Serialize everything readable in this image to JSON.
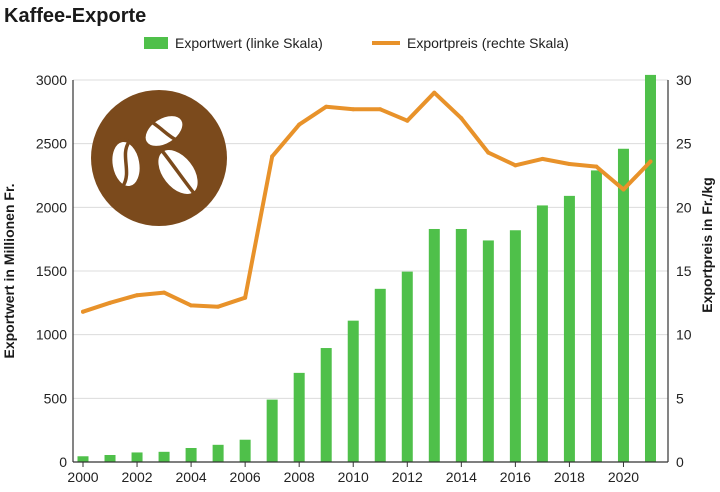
{
  "chart_data": {
    "type": "bar",
    "title": "Kaffee-Exporte",
    "legend_placement": "top",
    "grid": true,
    "x": [
      2000,
      2001,
      2002,
      2003,
      2004,
      2005,
      2006,
      2007,
      2008,
      2009,
      2010,
      2011,
      2012,
      2013,
      2014,
      2015,
      2016,
      2017,
      2018,
      2019,
      2020,
      2021
    ],
    "x_ticks": [
      "2000",
      "2002",
      "2004",
      "2006",
      "2008",
      "2010",
      "2012",
      "2014",
      "2016",
      "2018",
      "2020"
    ],
    "series": [
      {
        "name": "Exportwert (linke Skala)",
        "type": "bar",
        "axis": "left",
        "color": "#4fc04a",
        "values": [
          45,
          55,
          75,
          80,
          110,
          135,
          175,
          490,
          700,
          895,
          1110,
          1360,
          1495,
          1830,
          1830,
          1740,
          1820,
          2015,
          2090,
          2290,
          2460,
          3040
        ]
      },
      {
        "name": "Exportpreis (rechte Skala)",
        "type": "line",
        "axis": "right",
        "color": "#e8922a",
        "values": [
          11.8,
          12.5,
          13.1,
          13.3,
          12.3,
          12.2,
          12.9,
          24.0,
          26.5,
          27.9,
          27.7,
          27.7,
          26.8,
          29.0,
          27.0,
          24.3,
          23.3,
          23.8,
          23.4,
          23.2,
          21.4,
          23.6
        ]
      }
    ],
    "y_left": {
      "label": "Exportwert in Millionen Fr.",
      "lim": [
        0,
        3000
      ],
      "ticks": [
        0,
        500,
        1000,
        1500,
        2000,
        2500,
        3000
      ]
    },
    "y_right": {
      "label": "Exportpreis in Fr./kg",
      "lim": [
        0,
        30
      ],
      "ticks": [
        0,
        5,
        10,
        15,
        20,
        25,
        30
      ]
    },
    "x_range": [
      2000,
      2021.5
    ],
    "badge": {
      "icon": "coffee-beans-icon",
      "color": "#7b4a1c"
    }
  }
}
